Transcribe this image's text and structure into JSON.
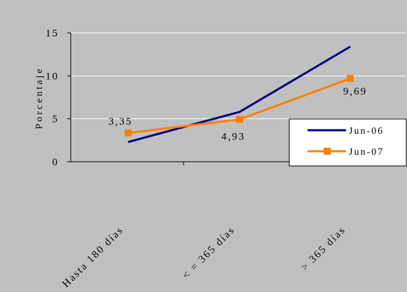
{
  "chart_data": {
    "type": "line",
    "categories": [
      "Hasta 180 días",
      "< = 365 días",
      "> 365 días"
    ],
    "ylabel": "Porcentaje",
    "ylim": [
      0,
      15
    ],
    "yticks": [
      "0",
      "5",
      "10",
      "15"
    ],
    "grid": true,
    "legend": "right",
    "series": [
      {
        "name": "Jun-06",
        "values": [
          2.3,
          5.8,
          13.4
        ],
        "color": "#00007f",
        "marker": "none",
        "labels": [
          "",
          "",
          ""
        ]
      },
      {
        "name": "Jun-07",
        "values": [
          3.35,
          4.93,
          9.69
        ],
        "color": "#ff7f00",
        "marker": "square",
        "labels": [
          "3,35",
          "4,93",
          "9,69"
        ]
      }
    ],
    "colors": {
      "plot_background": "#c0c0c0",
      "grid": "#ffffff"
    }
  }
}
